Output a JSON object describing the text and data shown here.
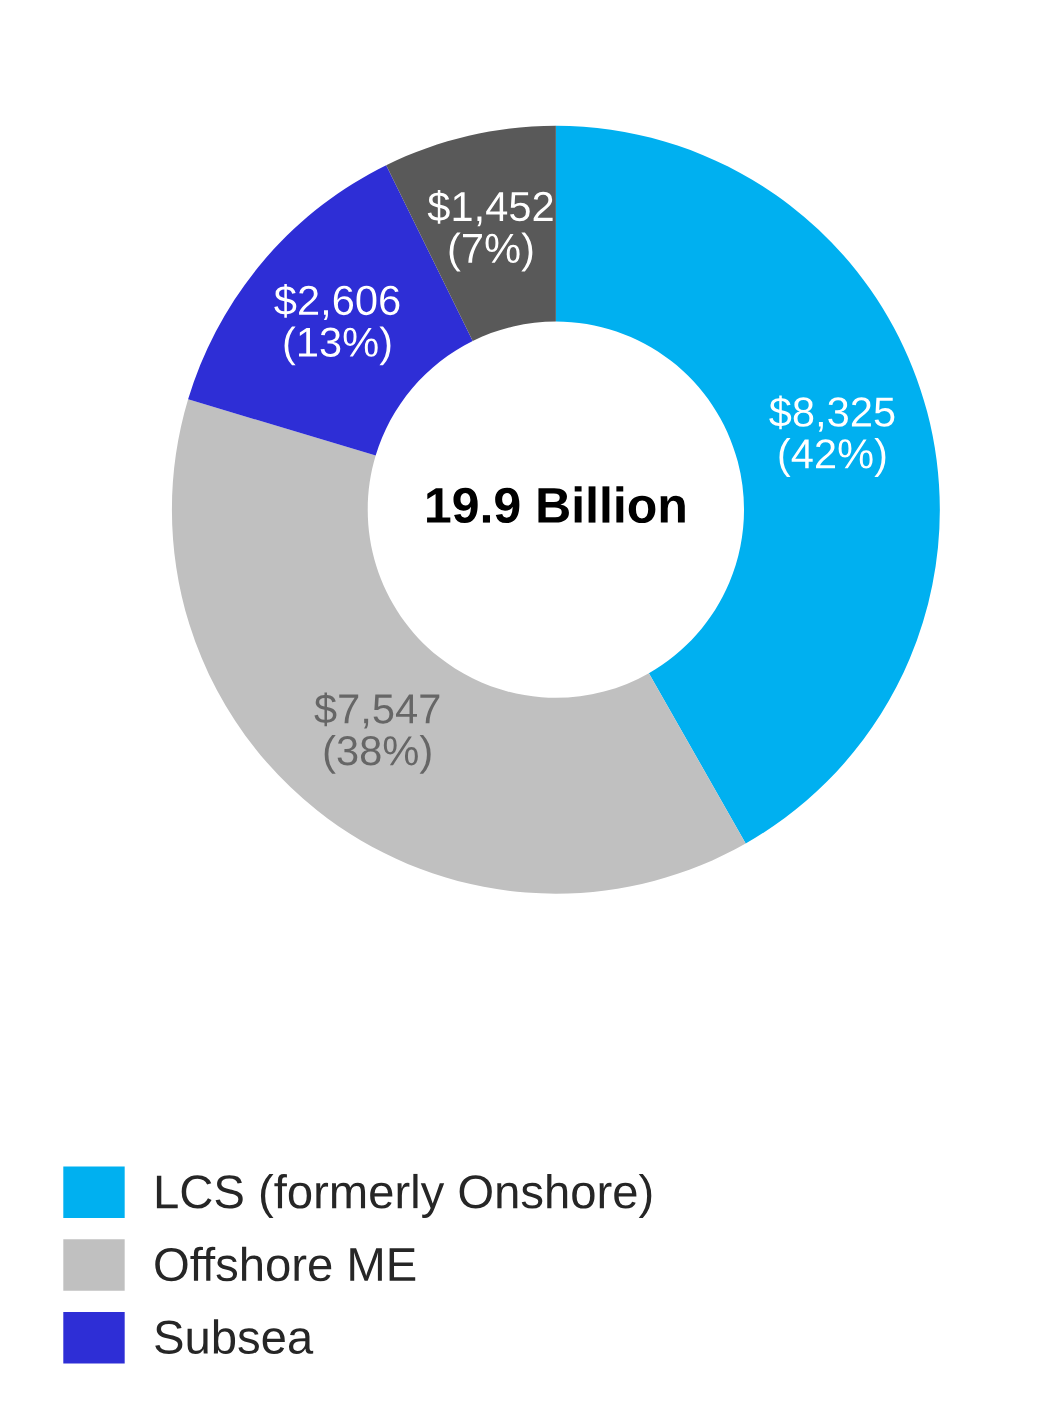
{
  "chart_data": {
    "type": "donut",
    "categories": [
      "LCS (formerly Onshore)",
      "Offshore ME",
      "Subsea",
      null
    ],
    "values": [
      8325,
      7547,
      2606,
      1452
    ],
    "colors": [
      "#00b0f0",
      "#c0c0c0",
      "#2e2ed6",
      "#595959"
    ],
    "value_labels": [
      "$8,325\n(42%)",
      "$7,547\n(38%)",
      "$2,606\n(13%)",
      "$1,452\n(7%)"
    ],
    "annotations": [
      "19.9 Billion"
    ],
    "legend": "bottom"
  }
}
